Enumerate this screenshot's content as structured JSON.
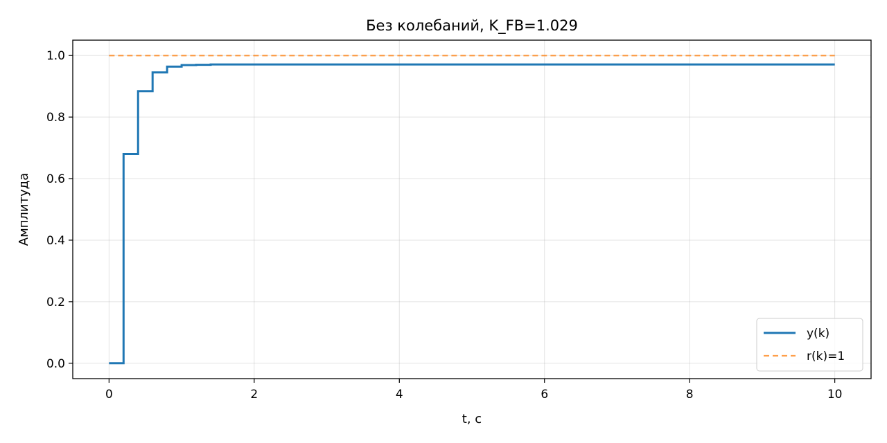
{
  "chart_data": {
    "type": "line",
    "title": "Без колебаний, K_FB=1.029",
    "xlabel": "t, c",
    "ylabel": "Амплитуда",
    "xlim": [
      -0.5,
      10.5
    ],
    "ylim": [
      -0.05,
      1.05
    ],
    "xticks": [
      0,
      2,
      4,
      6,
      8,
      10
    ],
    "xtick_labels": [
      "0",
      "2",
      "4",
      "6",
      "8",
      "10"
    ],
    "yticks": [
      0.0,
      0.2,
      0.4,
      0.6,
      0.8,
      1.0
    ],
    "ytick_labels": [
      "0.0",
      "0.2",
      "0.4",
      "0.6",
      "0.8",
      "1.0"
    ],
    "grid": true,
    "legend_position": "bottom-right",
    "series": [
      {
        "name": "y(k)",
        "style": "steps-post",
        "color": "#1f77b4",
        "x": [
          0,
          0.2,
          0.4,
          0.6,
          0.8,
          1.0,
          1.2,
          1.4,
          10
        ],
        "y": [
          0.0,
          0.68,
          0.884,
          0.945,
          0.964,
          0.969,
          0.97,
          0.971,
          0.971
        ]
      },
      {
        "name": "r(k)=1",
        "style": "dashed",
        "color": "#ff7f0e",
        "x": [
          0,
          10
        ],
        "y": [
          1.0,
          1.0
        ]
      }
    ]
  }
}
